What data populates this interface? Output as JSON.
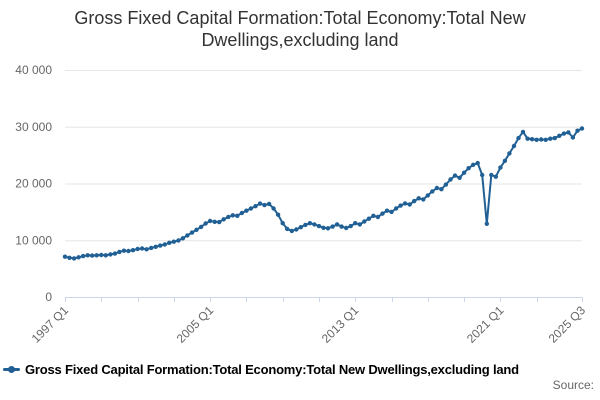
{
  "header": {
    "title": "Gross Fixed Capital Formation:Total Economy:Total New Dwellings,excluding land"
  },
  "legend": {
    "label": "Gross Fixed Capital Formation:Total Economy:Total New Dwellings,excluding land"
  },
  "footer": {
    "source_label": "Source:"
  },
  "colors": {
    "line": "#206095",
    "grid": "#e6e6e6",
    "axis": "#ccd6eb",
    "tick_text": "#666666",
    "title_text": "#333333",
    "legend_text": "#000000"
  },
  "chart_data": {
    "type": "line",
    "title": "Gross Fixed Capital Formation:Total Economy:Total New Dwellings,excluding land",
    "series_name": "Gross Fixed Capital Formation:Total Economy:Total New Dwellings,excluding land",
    "x_frequency": "quarterly",
    "x_start": "1997 Q1",
    "x_end": "2025 Q3",
    "xlabel": "",
    "ylabel": "",
    "ylim": [
      0,
      40000
    ],
    "grid": "horizontal-only",
    "legend_position": "bottom-left",
    "ytick_values": [
      0,
      10000,
      20000,
      30000,
      40000
    ],
    "ytick_labels": [
      "0",
      "10 000",
      "20 000",
      "30 000",
      "40 000"
    ],
    "xtick_quarters": [
      0,
      8,
      16,
      24,
      32,
      40,
      48,
      56,
      64,
      72,
      80,
      88,
      96,
      104,
      114
    ],
    "xtick_labels": [
      {
        "q": 0,
        "label": "1997 Q1"
      },
      {
        "q": 32,
        "label": "2005 Q1"
      },
      {
        "q": 64,
        "label": "2013 Q1"
      },
      {
        "q": 96,
        "label": "2021 Q1"
      },
      {
        "q": 114,
        "label": "2025 Q3"
      }
    ],
    "values": [
      7100,
      6900,
      6800,
      7000,
      7200,
      7350,
      7300,
      7350,
      7400,
      7350,
      7500,
      7650,
      7950,
      8150,
      8100,
      8250,
      8450,
      8550,
      8400,
      8650,
      8850,
      9050,
      9250,
      9550,
      9750,
      9950,
      10350,
      10850,
      11350,
      11850,
      12350,
      12950,
      13400,
      13250,
      13200,
      13700,
      14100,
      14400,
      14300,
      14800,
      15200,
      15600,
      16000,
      16450,
      16200,
      16400,
      15600,
      14500,
      13000,
      12000,
      11650,
      11900,
      12300,
      12700,
      13000,
      12800,
      12500,
      12200,
      12100,
      12400,
      12800,
      12400,
      12150,
      12500,
      13000,
      12800,
      13300,
      13800,
      14300,
      14100,
      14700,
      15200,
      15000,
      15600,
      16100,
      16500,
      16300,
      16900,
      17400,
      17200,
      17900,
      18600,
      19200,
      19000,
      19800,
      20700,
      21400,
      21000,
      21900,
      22700,
      23300,
      23600,
      21500,
      12900,
      21500,
      21200,
      22800,
      24000,
      25300,
      26600,
      28000,
      29100,
      27900,
      27800,
      27700,
      27750,
      27700,
      27900,
      28000,
      28400,
      28800,
      29000,
      28100,
      29300,
      29700
    ]
  }
}
